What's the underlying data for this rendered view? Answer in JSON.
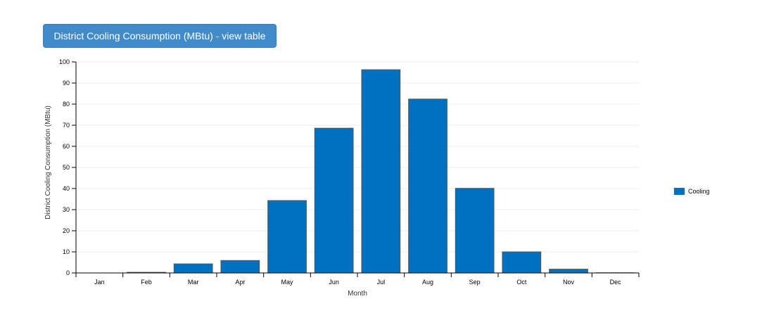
{
  "header": {
    "view_table_label": "District Cooling Consumption (MBtu) - view table"
  },
  "chart_data": {
    "type": "bar",
    "title": "",
    "xlabel": "Month",
    "ylabel": "District Cooling Consumption (MBtu)",
    "categories": [
      "Jan",
      "Feb",
      "Mar",
      "Apr",
      "May",
      "Jun",
      "Jul",
      "Aug",
      "Sep",
      "Oct",
      "Nov",
      "Dec"
    ],
    "series": [
      {
        "name": "Cooling",
        "color": "#0070c0",
        "values": [
          0,
          0.3,
          4.3,
          5.9,
          34.3,
          68.6,
          96.3,
          82.4,
          40.1,
          10.0,
          1.8,
          0.1
        ]
      }
    ],
    "ylim": [
      0,
      100
    ],
    "yticks": [
      0,
      10,
      20,
      30,
      40,
      50,
      60,
      70,
      80,
      90,
      100
    ],
    "grid": true,
    "legend_position": "right"
  }
}
